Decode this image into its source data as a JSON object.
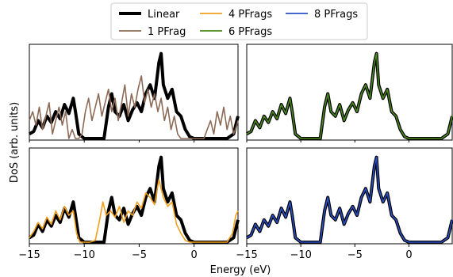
{
  "chart_data": {
    "type": "line",
    "xlabel": "Energy (eV)",
    "ylabel": "DoS (arb. units)",
    "xlim": [
      -15,
      4
    ],
    "x_ticks": [
      "−15",
      "−10",
      "−5",
      "0"
    ],
    "x_tick_values": [
      -15,
      -10,
      -5,
      0
    ],
    "y_ticks_shown": false,
    "legend_placement": "top-center",
    "legend": [
      {
        "name": "Linear",
        "color": "#000000"
      },
      {
        "name": "1 PFrag",
        "color": "#8c6a56"
      },
      {
        "name": "4 PFrags",
        "color": "#f2a01c"
      },
      {
        "name": "6 PFrags",
        "color": "#4a8a1e"
      },
      {
        "name": "8 PFrags",
        "color": "#2a50c8"
      }
    ],
    "panels": [
      {
        "position": "top-left",
        "series": [
          {
            "name": "Linear",
            "color": "#000000",
            "x": [
              -15,
              -14.6,
              -14.2,
              -13.8,
              -13.4,
              -13.0,
              -12.6,
              -12.2,
              -11.8,
              -11.4,
              -11.0,
              -10.8,
              -10.5,
              -10.0,
              -9.0,
              -8.2,
              -7.8,
              -7.5,
              -7.2,
              -6.8,
              -6.4,
              -6.0,
              -5.6,
              -5.2,
              -4.8,
              -4.4,
              -4.0,
              -3.6,
              -3.2,
              -3.0,
              -2.8,
              -2.4,
              -2.0,
              -1.6,
              -1.2,
              -0.8,
              -0.4,
              0,
              1,
              2,
              3,
              3.6,
              3.9,
              4
            ],
            "y": [
              0.05,
              0.08,
              0.2,
              0.12,
              0.25,
              0.18,
              0.3,
              0.22,
              0.38,
              0.28,
              0.45,
              0.3,
              0.05,
              0,
              0,
              0,
              0.35,
              0.5,
              0.3,
              0.25,
              0.38,
              0.2,
              0.32,
              0.4,
              0.3,
              0.5,
              0.6,
              0.45,
              0.85,
              0.95,
              0.6,
              0.45,
              0.55,
              0.3,
              0.25,
              0.1,
              0.02,
              0,
              0,
              0,
              0,
              0.05,
              0.2,
              0.25
            ]
          },
          {
            "name": "1 PFrag",
            "color": "#8c6a56",
            "x": [
              -15,
              -14.7,
              -14.4,
              -14.1,
              -13.8,
              -13.5,
              -13.2,
              -12.9,
              -12.6,
              -12.3,
              -12.0,
              -11.7,
              -11.4,
              -11.1,
              -10.8,
              -10.5,
              -10.2,
              -9.9,
              -9.6,
              -9.3,
              -9.0,
              -8.7,
              -8.4,
              -8.1,
              -7.8,
              -7.5,
              -7.2,
              -6.9,
              -6.6,
              -6.3,
              -6.0,
              -5.7,
              -5.4,
              -5.1,
              -4.8,
              -4.5,
              -4.2,
              -3.9,
              -3.6,
              -3.3,
              -3.0,
              -2.7,
              -2.4,
              -2.1,
              -1.8,
              -1.5,
              -1.2,
              -0.9,
              -0.6,
              -0.3,
              0,
              0.3,
              0.6,
              0.9,
              1.2,
              1.5,
              1.8,
              2.1,
              2.4,
              2.7,
              3.0,
              3.3,
              3.6,
              3.9,
              4
            ],
            "y": [
              0.2,
              0.3,
              0.15,
              0.35,
              0.1,
              0.25,
              0.4,
              0.05,
              0.2,
              0.35,
              0.15,
              0.3,
              0.0,
              0.1,
              0.0,
              0.0,
              0.05,
              0.3,
              0.45,
              0.2,
              0.35,
              0.5,
              0.25,
              0.4,
              0.55,
              0.3,
              0.45,
              0.2,
              0.4,
              0.6,
              0.25,
              0.5,
              0.35,
              0.55,
              0.7,
              0.4,
              0.55,
              0.35,
              0.5,
              0.3,
              0.45,
              0.2,
              0.35,
              0.1,
              0.25,
              0.05,
              0.0,
              0.0,
              0.0,
              0.0,
              0.0,
              0.0,
              0.0,
              0.0,
              0.1,
              0.2,
              0.05,
              0.3,
              0.15,
              0.35,
              0.1,
              0.25,
              0.05,
              0.15,
              0.2
            ]
          }
        ]
      },
      {
        "position": "top-right",
        "series": [
          {
            "name": "Linear",
            "color": "#000000",
            "x": [
              -15,
              -14.6,
              -14.2,
              -13.8,
              -13.4,
              -13.0,
              -12.6,
              -12.2,
              -11.8,
              -11.4,
              -11.0,
              -10.8,
              -10.5,
              -10.0,
              -9.0,
              -8.2,
              -7.8,
              -7.5,
              -7.2,
              -6.8,
              -6.4,
              -6.0,
              -5.6,
              -5.2,
              -4.8,
              -4.4,
              -4.0,
              -3.6,
              -3.2,
              -3.0,
              -2.8,
              -2.4,
              -2.0,
              -1.6,
              -1.2,
              -0.8,
              -0.4,
              0,
              1,
              2,
              3,
              3.6,
              3.9,
              4
            ],
            "y": [
              0.05,
              0.08,
              0.2,
              0.12,
              0.25,
              0.18,
              0.3,
              0.22,
              0.38,
              0.28,
              0.45,
              0.3,
              0.05,
              0,
              0,
              0,
              0.35,
              0.5,
              0.3,
              0.25,
              0.38,
              0.2,
              0.32,
              0.4,
              0.3,
              0.5,
              0.6,
              0.45,
              0.85,
              0.95,
              0.6,
              0.45,
              0.55,
              0.3,
              0.25,
              0.1,
              0.02,
              0,
              0,
              0,
              0,
              0.05,
              0.2,
              0.25
            ]
          },
          {
            "name": "6 PFrags",
            "color": "#4a8a1e",
            "x": [
              -15,
              -14.6,
              -14.2,
              -13.8,
              -13.4,
              -13.0,
              -12.6,
              -12.2,
              -11.8,
              -11.4,
              -11.0,
              -10.8,
              -10.5,
              -10.0,
              -9.0,
              -8.2,
              -7.8,
              -7.5,
              -7.2,
              -6.8,
              -6.4,
              -6.0,
              -5.6,
              -5.2,
              -4.8,
              -4.4,
              -4.0,
              -3.6,
              -3.2,
              -3.0,
              -2.8,
              -2.4,
              -2.0,
              -1.6,
              -1.2,
              -0.8,
              -0.4,
              0,
              1,
              2,
              3,
              3.6,
              3.9,
              4
            ],
            "y": [
              0.05,
              0.08,
              0.2,
              0.12,
              0.25,
              0.18,
              0.3,
              0.22,
              0.38,
              0.28,
              0.45,
              0.3,
              0.05,
              0,
              0,
              0,
              0.35,
              0.5,
              0.3,
              0.25,
              0.38,
              0.2,
              0.32,
              0.4,
              0.3,
              0.5,
              0.6,
              0.45,
              0.85,
              0.95,
              0.6,
              0.45,
              0.55,
              0.3,
              0.25,
              0.1,
              0.02,
              0,
              0,
              0,
              0,
              0.05,
              0.2,
              0.25
            ]
          }
        ]
      },
      {
        "position": "bottom-left",
        "series": [
          {
            "name": "Linear",
            "color": "#000000",
            "x": [
              -15,
              -14.6,
              -14.2,
              -13.8,
              -13.4,
              -13.0,
              -12.6,
              -12.2,
              -11.8,
              -11.4,
              -11.0,
              -10.8,
              -10.5,
              -10.0,
              -9.0,
              -8.2,
              -7.8,
              -7.5,
              -7.2,
              -6.8,
              -6.4,
              -6.0,
              -5.6,
              -5.2,
              -4.8,
              -4.4,
              -4.0,
              -3.6,
              -3.2,
              -3.0,
              -2.8,
              -2.4,
              -2.0,
              -1.6,
              -1.2,
              -0.8,
              -0.4,
              0,
              1,
              2,
              3,
              3.6,
              3.9,
              4
            ],
            "y": [
              0.05,
              0.08,
              0.2,
              0.12,
              0.25,
              0.18,
              0.3,
              0.22,
              0.38,
              0.28,
              0.45,
              0.3,
              0.05,
              0,
              0,
              0,
              0.35,
              0.5,
              0.3,
              0.25,
              0.38,
              0.2,
              0.32,
              0.4,
              0.3,
              0.5,
              0.6,
              0.45,
              0.85,
              0.95,
              0.6,
              0.45,
              0.55,
              0.3,
              0.25,
              0.1,
              0.02,
              0,
              0,
              0,
              0,
              0.05,
              0.2,
              0.25
            ]
          },
          {
            "name": "4 PFrags",
            "color": "#f2a01c",
            "x": [
              -15,
              -14.6,
              -14.2,
              -13.8,
              -13.4,
              -13.0,
              -12.6,
              -12.2,
              -11.8,
              -11.4,
              -11.0,
              -10.7,
              -10.4,
              -10.0,
              -9.5,
              -9.0,
              -8.6,
              -8.3,
              -8.0,
              -7.6,
              -7.2,
              -6.8,
              -6.4,
              -6.0,
              -5.6,
              -5.2,
              -4.8,
              -4.4,
              -4.0,
              -3.6,
              -3.2,
              -3.0,
              -2.8,
              -2.4,
              -2.0,
              -1.6,
              -1.2,
              -0.8,
              -0.4,
              0,
              1,
              2,
              3,
              3.5,
              3.8,
              4
            ],
            "y": [
              0.05,
              0.12,
              0.22,
              0.15,
              0.28,
              0.2,
              0.35,
              0.25,
              0.4,
              0.3,
              0.35,
              0.1,
              0.0,
              0,
              0,
              0.02,
              0.25,
              0.45,
              0.3,
              0.35,
              0.28,
              0.4,
              0.22,
              0.35,
              0.3,
              0.45,
              0.38,
              0.55,
              0.5,
              0.42,
              0.7,
              0.6,
              0.5,
              0.4,
              0.45,
              0.2,
              0.1,
              0.02,
              0,
              0,
              0,
              0,
              0,
              0.1,
              0.3,
              0.35
            ]
          }
        ]
      },
      {
        "position": "bottom-right",
        "series": [
          {
            "name": "Linear",
            "color": "#000000",
            "x": [
              -15,
              -14.6,
              -14.2,
              -13.8,
              -13.4,
              -13.0,
              -12.6,
              -12.2,
              -11.8,
              -11.4,
              -11.0,
              -10.8,
              -10.5,
              -10.0,
              -9.0,
              -8.2,
              -7.8,
              -7.5,
              -7.2,
              -6.8,
              -6.4,
              -6.0,
              -5.6,
              -5.2,
              -4.8,
              -4.4,
              -4.0,
              -3.6,
              -3.2,
              -3.0,
              -2.8,
              -2.4,
              -2.0,
              -1.6,
              -1.2,
              -0.8,
              -0.4,
              0,
              1,
              2,
              3,
              3.6,
              3.9,
              4
            ],
            "y": [
              0.05,
              0.08,
              0.2,
              0.12,
              0.25,
              0.18,
              0.3,
              0.22,
              0.38,
              0.28,
              0.45,
              0.3,
              0.05,
              0,
              0,
              0,
              0.35,
              0.5,
              0.3,
              0.25,
              0.38,
              0.2,
              0.32,
              0.4,
              0.3,
              0.5,
              0.6,
              0.45,
              0.85,
              0.95,
              0.6,
              0.45,
              0.55,
              0.3,
              0.25,
              0.1,
              0.02,
              0,
              0,
              0,
              0,
              0.05,
              0.2,
              0.25
            ]
          },
          {
            "name": "8 PFrags",
            "color": "#2a50c8",
            "x": [
              -15,
              -14.6,
              -14.2,
              -13.8,
              -13.4,
              -13.0,
              -12.6,
              -12.2,
              -11.8,
              -11.4,
              -11.0,
              -10.8,
              -10.5,
              -10.0,
              -9.0,
              -8.2,
              -7.8,
              -7.5,
              -7.2,
              -6.8,
              -6.4,
              -6.0,
              -5.6,
              -5.2,
              -4.8,
              -4.4,
              -4.0,
              -3.6,
              -3.2,
              -3.0,
              -2.8,
              -2.4,
              -2.0,
              -1.6,
              -1.2,
              -0.8,
              -0.4,
              0,
              1,
              2,
              3,
              3.6,
              3.9,
              4
            ],
            "y": [
              0.05,
              0.08,
              0.2,
              0.12,
              0.25,
              0.18,
              0.3,
              0.22,
              0.38,
              0.28,
              0.45,
              0.3,
              0.05,
              0,
              0,
              0,
              0.35,
              0.5,
              0.3,
              0.25,
              0.38,
              0.2,
              0.32,
              0.4,
              0.3,
              0.5,
              0.6,
              0.45,
              0.85,
              0.95,
              0.6,
              0.45,
              0.55,
              0.3,
              0.25,
              0.1,
              0.02,
              0,
              0,
              0,
              0,
              0.05,
              0.2,
              0.25
            ]
          }
        ]
      }
    ]
  }
}
